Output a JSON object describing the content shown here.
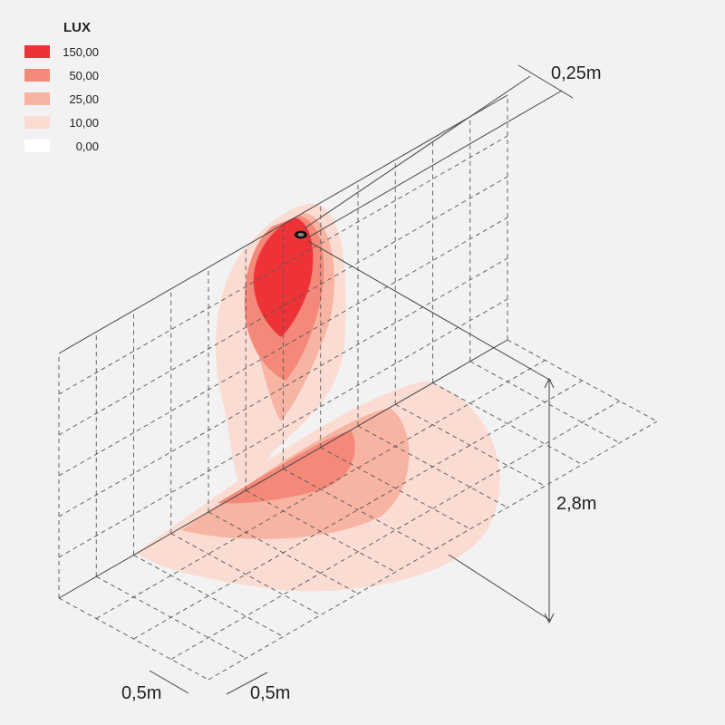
{
  "legend": {
    "title": "LUX",
    "items": [
      {
        "label": "150,00",
        "color": "#ee3338"
      },
      {
        "label": "50,00",
        "color": "#f4897a"
      },
      {
        "label": "25,00",
        "color": "#f8b4a2"
      },
      {
        "label": "10,00",
        "color": "#fbdcd3"
      },
      {
        "label": "0,00",
        "color": "#ffffff"
      }
    ]
  },
  "dimensions": {
    "offset": "0,25m",
    "height": "2,8m",
    "grid_x": "0,5m",
    "grid_y": "0,5m"
  }
}
